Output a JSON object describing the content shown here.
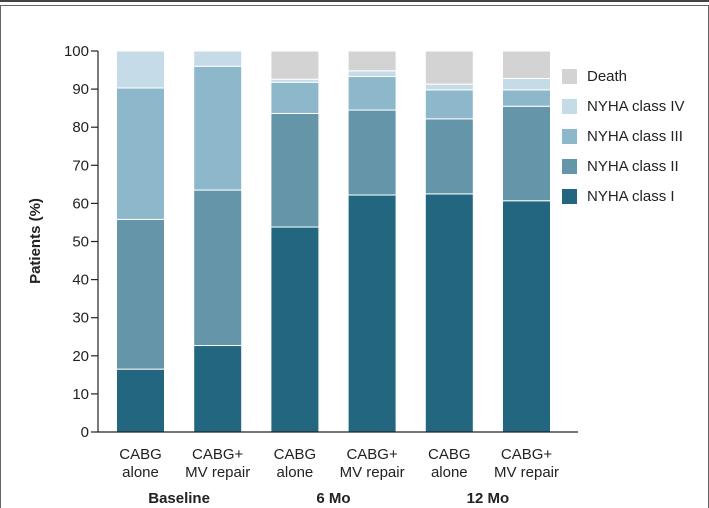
{
  "chart_data": {
    "type": "bar",
    "stacked": true,
    "ylabel": "Patients (%)",
    "ylim": [
      0,
      100
    ],
    "yticks": [
      0,
      10,
      20,
      30,
      40,
      50,
      60,
      70,
      80,
      90,
      100
    ],
    "grid": false,
    "legend_position": "right",
    "categories": [
      [
        "CABG",
        "alone"
      ],
      [
        "CABG+",
        "MV repair"
      ],
      [
        "CABG",
        "alone"
      ],
      [
        "CABG+",
        "MV repair"
      ],
      [
        "CABG",
        "alone"
      ],
      [
        "CABG+",
        "MV repair"
      ]
    ],
    "groups": [
      "Baseline",
      "6 Mo",
      "12 Mo"
    ],
    "series": [
      {
        "name": "NYHA class I",
        "color": "#22677f",
        "values": [
          16.5,
          22.7,
          53.8,
          62.2,
          62.5,
          60.7
        ]
      },
      {
        "name": "NYHA class II",
        "color": "#6595a9",
        "values": [
          39.3,
          40.8,
          29.8,
          22.3,
          19.7,
          24.8
        ]
      },
      {
        "name": "NYHA class III",
        "color": "#8db8cc",
        "values": [
          34.5,
          32.5,
          8.2,
          8.8,
          7.6,
          4.3
        ]
      },
      {
        "name": "NYHA class IV",
        "color": "#c5dbe8",
        "values": [
          9.7,
          4.0,
          0.8,
          1.5,
          1.5,
          3.0
        ]
      },
      {
        "name": "Death",
        "color": "#d3d3d3",
        "values": [
          0,
          0,
          7.4,
          5.2,
          8.7,
          7.2
        ]
      }
    ]
  }
}
